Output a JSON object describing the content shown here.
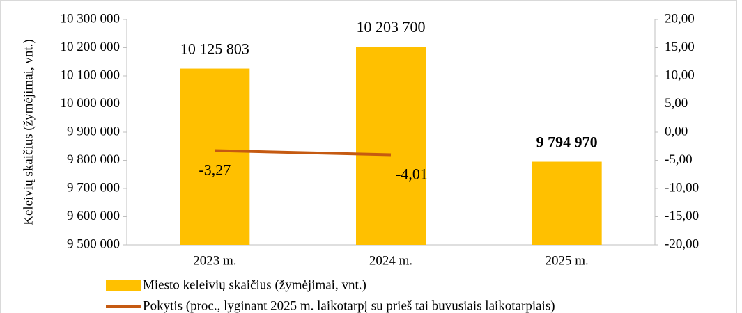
{
  "chart_data": {
    "type": "bar",
    "y_label": "Keleivių skaičius (žymėjimai, vnt.)",
    "categories": [
      "2023 m.",
      "2024 m.",
      "2025 m."
    ],
    "series": [
      {
        "name": "Miesto keleivių skaičius (žymėjimai, vnt.)",
        "type": "bar",
        "color": "#ffc000",
        "values": [
          10125803,
          10203700,
          9794970
        ],
        "value_labels": [
          "10 125 803",
          "10 203 700",
          "9 794 970"
        ]
      },
      {
        "name": "Pokytis (proc., lyginant  2025 m. laikotarpį su prieš tai buvusiais laikotarpiais)",
        "type": "line",
        "axis": "y2",
        "color": "#c55a11",
        "values": [
          -3.27,
          -4.01,
          null
        ],
        "value_labels": [
          "-3,27",
          "-4,01",
          null
        ]
      }
    ],
    "ylim": [
      9500000,
      10300000
    ],
    "yticks": [
      {
        "value": 9500000,
        "label": "9 500 000"
      },
      {
        "value": 9600000,
        "label": "9 600 000"
      },
      {
        "value": 9700000,
        "label": "9 700 000"
      },
      {
        "value": 9800000,
        "label": "9 800 000"
      },
      {
        "value": 9900000,
        "label": "9 900 000"
      },
      {
        "value": 10000000,
        "label": "10 000 000"
      },
      {
        "value": 10100000,
        "label": "10 100 000"
      },
      {
        "value": 10200000,
        "label": "10 200 000"
      },
      {
        "value": 10300000,
        "label": "10 300 000"
      }
    ],
    "y2lim": [
      -20,
      20
    ],
    "y2ticks": [
      {
        "value": -20,
        "label": "-20,00"
      },
      {
        "value": -15,
        "label": "-15,00"
      },
      {
        "value": -10,
        "label": "-10,00"
      },
      {
        "value": -5,
        "label": "-5,00"
      },
      {
        "value": 0,
        "label": "0,00"
      },
      {
        "value": 5,
        "label": "5,00"
      },
      {
        "value": 10,
        "label": "10,00"
      },
      {
        "value": 15,
        "label": "15,00"
      },
      {
        "value": 20,
        "label": "20,00"
      }
    ]
  }
}
